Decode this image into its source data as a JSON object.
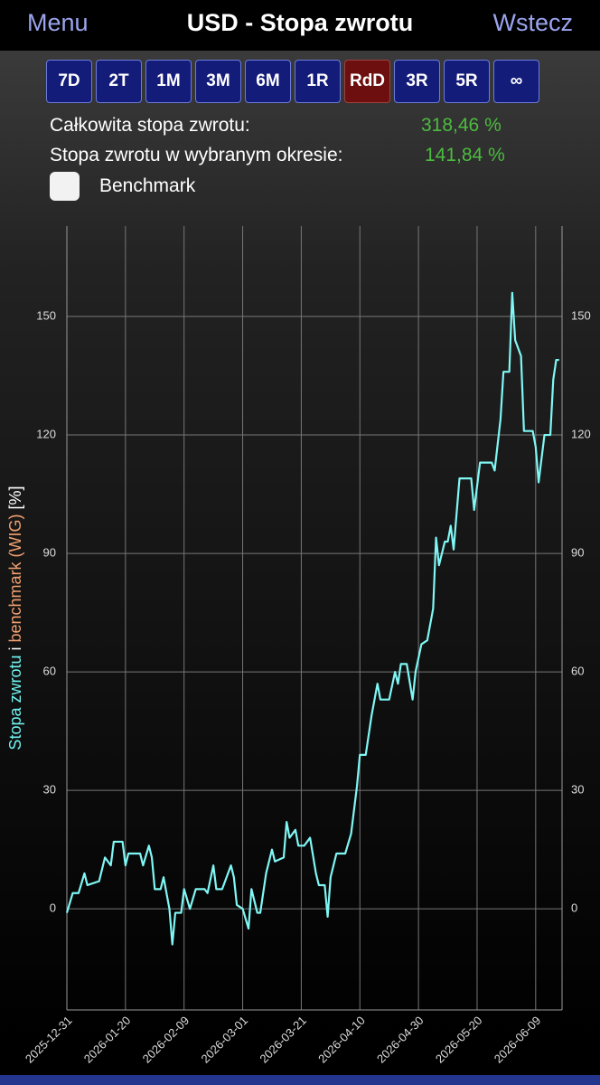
{
  "header": {
    "menu": "Menu",
    "title": "USD - Stopa zwrotu",
    "back": "Wstecz"
  },
  "periods": {
    "buttons": [
      "7D",
      "2T",
      "1M",
      "3M",
      "6M",
      "1R",
      "RdD",
      "3R",
      "5R",
      "∞"
    ],
    "active_index": 6
  },
  "stats": [
    {
      "label": "Całkowita stopa zwrotu:",
      "value": "318,46 %"
    },
    {
      "label": "Stopa zwrotu w wybranym okresie:",
      "value": "141,84 %"
    }
  ],
  "benchmark": {
    "label": "Benchmark",
    "checked": false
  },
  "chart_data": {
    "type": "line",
    "ylabel_parts": [
      {
        "text": "Stopa zwrotu",
        "color": "#6ff3f0"
      },
      {
        "text": " i ",
        "color": "#ffffff"
      },
      {
        "text": "benchmark (WIG)",
        "color": "#f0a070"
      },
      {
        "text": " [%]",
        "color": "#ffffff"
      }
    ],
    "x": [
      "2025-12-31",
      "2026-01-02",
      "2026-01-04",
      "2026-01-06",
      "2026-01-07",
      "2026-01-11",
      "2026-01-13",
      "2026-01-15",
      "2026-01-16",
      "2026-01-19",
      "2026-01-20",
      "2026-01-21",
      "2026-01-25",
      "2026-01-26",
      "2026-01-28",
      "2026-01-29",
      "2026-01-30",
      "2026-02-01",
      "2026-02-02",
      "2026-02-04",
      "2026-02-05",
      "2026-02-06",
      "2026-02-08",
      "2026-02-09",
      "2026-02-11",
      "2026-02-13",
      "2026-02-16",
      "2026-02-17",
      "2026-02-19",
      "2026-02-20",
      "2026-02-22",
      "2026-02-25",
      "2026-02-26",
      "2026-02-27",
      "2026-03-01",
      "2026-03-03",
      "2026-03-04",
      "2026-03-06",
      "2026-03-07",
      "2026-03-09",
      "2026-03-11",
      "2026-03-12",
      "2026-03-15",
      "2026-03-16",
      "2026-03-17",
      "2026-03-19",
      "2026-03-20",
      "2026-03-22",
      "2026-03-24",
      "2026-03-26",
      "2026-03-27",
      "2026-03-29",
      "2026-03-30",
      "2026-03-31",
      "2026-04-02",
      "2026-04-05",
      "2026-04-07",
      "2026-04-09",
      "2026-04-10",
      "2026-04-12",
      "2026-04-14",
      "2026-04-16",
      "2026-04-17",
      "2026-04-20",
      "2026-04-22",
      "2026-04-23",
      "2026-04-24",
      "2026-04-26",
      "2026-04-28",
      "2026-04-29",
      "2026-05-01",
      "2026-05-03",
      "2026-05-05",
      "2026-05-06",
      "2026-05-07",
      "2026-05-09",
      "2026-05-10",
      "2026-05-11",
      "2026-05-12",
      "2026-05-14",
      "2026-05-16",
      "2026-05-18",
      "2026-05-19",
      "2026-05-21",
      "2026-05-25",
      "2026-05-26",
      "2026-05-28",
      "2026-05-29",
      "2026-05-31",
      "2026-06-01",
      "2026-06-02",
      "2026-06-04",
      "2026-06-05",
      "2026-06-08",
      "2026-06-09",
      "2026-06-10",
      "2026-06-12",
      "2026-06-14",
      "2026-06-15",
      "2026-06-16",
      "2026-06-17"
    ],
    "series": [
      {
        "name": "Stopa zwrotu",
        "color": "#7ff7f4",
        "values": [
          -1,
          4,
          4,
          9,
          6,
          7,
          13,
          11,
          17,
          17,
          11,
          14,
          14,
          11,
          16,
          13,
          5,
          5,
          8,
          0,
          -9,
          -1,
          -1,
          5,
          0,
          5,
          5,
          4,
          11,
          5,
          5,
          11,
          8,
          1,
          0,
          -5,
          5,
          -1,
          -1,
          9,
          15,
          12,
          13,
          22,
          18,
          20,
          16,
          16,
          18,
          9,
          6,
          6,
          -2,
          8,
          14,
          14,
          19,
          31,
          39,
          39,
          49,
          57,
          53,
          53,
          60,
          57,
          62,
          62,
          53,
          60,
          67,
          68,
          76,
          94,
          87,
          93,
          93,
          97,
          91,
          109,
          109,
          109,
          101,
          113,
          113,
          111,
          124,
          136,
          136,
          156,
          144,
          140,
          121,
          121,
          117,
          108,
          120,
          120,
          134,
          139,
          139
        ]
      }
    ],
    "xlim": [
      "2025-12-31",
      "2026-06-18"
    ],
    "xticks": [
      "2025-12-31",
      "2026-01-20",
      "2026-02-09",
      "2026-03-01",
      "2026-03-21",
      "2026-04-10",
      "2026-04-30",
      "2026-05-20",
      "2026-06-09"
    ],
    "ylim": [
      -25.6,
      172.9
    ],
    "yticks": [
      0,
      30,
      60,
      90,
      120,
      150
    ],
    "grid": true
  }
}
